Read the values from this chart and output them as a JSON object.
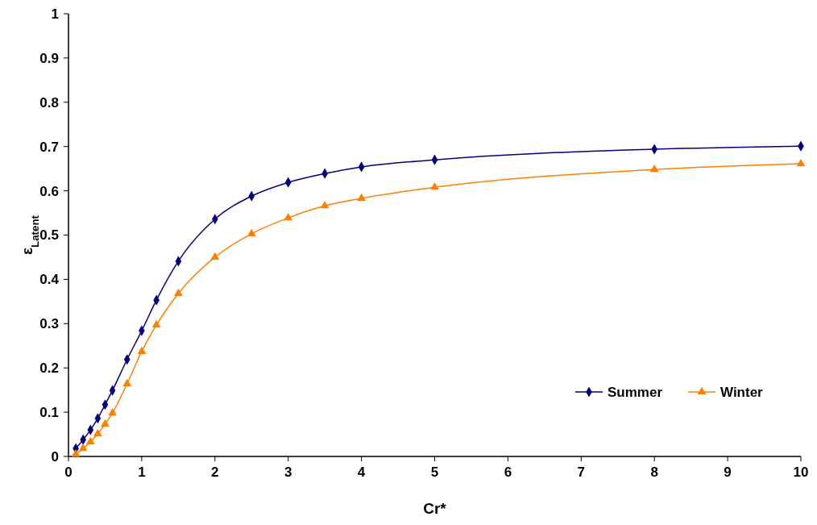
{
  "chart_data": {
    "type": "line",
    "xlabel": "Cr*",
    "ylabel": "ε$_{Latent}$",
    "xlim": [
      0,
      10
    ],
    "xticks": [
      0,
      1,
      2,
      3,
      4,
      5,
      6,
      7,
      8,
      9,
      10
    ],
    "ylim": [
      0,
      1
    ],
    "yticks": [
      0,
      0.1,
      0.2,
      0.3,
      0.4,
      0.5,
      0.6,
      0.7,
      0.8,
      0.9,
      1
    ],
    "grid": false,
    "legend": "bottom right",
    "x": [
      0.1,
      0.2,
      0.3,
      0.4,
      0.5,
      0.6,
      0.8,
      1,
      1.2,
      1.5,
      2,
      2.5,
      3,
      3.5,
      4,
      5,
      8,
      10
    ],
    "series": [
      {
        "name": "Summer",
        "color": "#000080",
        "marker": "diamond",
        "values": [
          0.018,
          0.038,
          0.06,
          0.086,
          0.117,
          0.149,
          0.219,
          0.284,
          0.353,
          0.441,
          0.536,
          0.588,
          0.619,
          0.639,
          0.654,
          0.67,
          0.694,
          0.701
        ]
      },
      {
        "name": "Winter",
        "color": "#ff8000",
        "marker": "triangle",
        "values": [
          0.005,
          0.018,
          0.033,
          0.051,
          0.073,
          0.098,
          0.164,
          0.237,
          0.297,
          0.368,
          0.45,
          0.503,
          0.539,
          0.566,
          0.583,
          0.608,
          0.648,
          0.661
        ]
      }
    ]
  }
}
